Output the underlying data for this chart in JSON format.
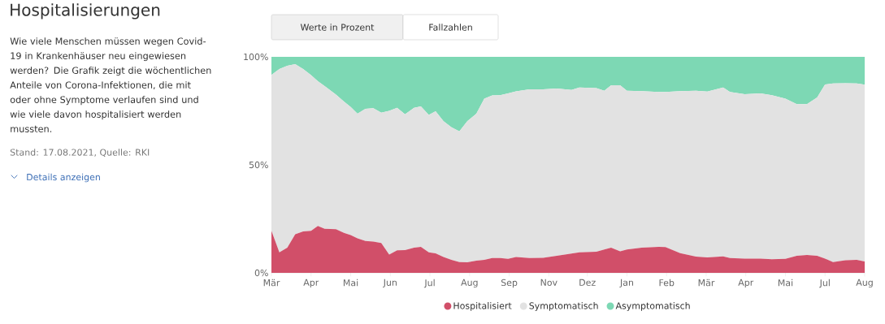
{
  "chart_data": {
    "type": "area",
    "title": "Hospitalisierungen",
    "subtitle": "Wie viele Menschen müssen wegen Covid-19 in Krankenhäuser neu eingewiesen werden? Die Grafik zeigt die wöchentlichen Anteile von Corona-Infektionen, die mit oder ohne Symptome verlaufen sind und wie viele davon hospitalisiert werden mussten.",
    "annotations": [
      "Stand: 17.08.2021, Quelle: RKI",
      "Details anzeigen",
      "Werte in Prozent",
      "Fallzahlen"
    ],
    "stacked": true,
    "legend": "bottom",
    "xlim": [
      "2020-03-02",
      "2021-08-08"
    ],
    "xticks": [
      {
        "value": "2020-03-02",
        "label": "Mär"
      },
      {
        "value": "2020-04-06",
        "label": "Apr"
      },
      {
        "value": "2020-05-11",
        "label": "Mai"
      },
      {
        "value": "2020-06-15",
        "label": "Jun"
      },
      {
        "value": "2020-07-20",
        "label": "Jul"
      },
      {
        "value": "2020-08-24",
        "label": "Aug"
      },
      {
        "value": "2020-09-28",
        "label": "Sep"
      },
      {
        "value": "2020-11-02",
        "label": "Nov"
      },
      {
        "value": "2020-12-06",
        "label": "Dez"
      },
      {
        "value": "2021-01-10",
        "label": "Jan"
      },
      {
        "value": "2021-02-14",
        "label": "Feb"
      },
      {
        "value": "2021-03-21",
        "label": "Mär"
      },
      {
        "value": "2021-04-25",
        "label": "Apr"
      },
      {
        "value": "2021-05-30",
        "label": "Mai"
      },
      {
        "value": "2021-07-04",
        "label": "Jul"
      },
      {
        "value": "2021-08-08",
        "label": "Aug"
      }
    ],
    "ylim": [
      0,
      100
    ],
    "yticks": [
      {
        "value": 0,
        "label": "0%"
      },
      {
        "value": 50,
        "label": "50%"
      },
      {
        "value": 100,
        "label": "100%"
      }
    ],
    "x": [
      "2020-03-02",
      "2020-03-09",
      "2020-03-16",
      "2020-03-23",
      "2020-03-30",
      "2020-04-06",
      "2020-04-12",
      "2020-04-18",
      "2020-04-28",
      "2020-05-05",
      "2020-05-11",
      "2020-05-17",
      "2020-05-24",
      "2020-05-31",
      "2020-06-07",
      "2020-06-14",
      "2020-06-21",
      "2020-06-28",
      "2020-07-06",
      "2020-07-12",
      "2020-07-19",
      "2020-07-25",
      "2020-08-01",
      "2020-08-08",
      "2020-08-15",
      "2020-08-22",
      "2020-08-30",
      "2020-09-06",
      "2020-09-13",
      "2020-09-20",
      "2020-09-27",
      "2020-10-04",
      "2020-10-16",
      "2020-10-28",
      "2020-11-09",
      "2020-11-22",
      "2020-11-29",
      "2020-12-14",
      "2020-12-21",
      "2020-12-27",
      "2021-01-04",
      "2021-01-10",
      "2021-01-23",
      "2021-02-07",
      "2021-02-13",
      "2021-02-26",
      "2021-03-12",
      "2021-03-22",
      "2021-04-05",
      "2021-04-11",
      "2021-04-24",
      "2021-05-08",
      "2021-05-18",
      "2021-05-30",
      "2021-06-09",
      "2021-06-18",
      "2021-06-27",
      "2021-07-04",
      "2021-07-11",
      "2021-07-22",
      "2021-08-01",
      "2021-08-08"
    ],
    "series": [
      {
        "name": "Hospitalisiert",
        "color": "#d14f69",
        "values": [
          19.5,
          9.5,
          11.7,
          17.9,
          19.2,
          19.5,
          21.7,
          20.4,
          20.2,
          18.5,
          17.5,
          16.0,
          14.8,
          14.5,
          13.8,
          8.5,
          10.4,
          10.5,
          11.7,
          12.0,
          9.5,
          9.0,
          7.3,
          6.0,
          5.0,
          4.9,
          5.6,
          6.0,
          6.9,
          6.9,
          6.5,
          7.3,
          6.9,
          7.0,
          7.9,
          8.9,
          9.5,
          9.8,
          10.8,
          11.7,
          10.0,
          10.8,
          11.7,
          12.0,
          11.9,
          9.1,
          7.5,
          7.1,
          7.6,
          6.9,
          6.6,
          6.6,
          6.3,
          6.5,
          7.9,
          8.3,
          7.9,
          6.6,
          5.0,
          5.8,
          6.0,
          5.3
        ]
      },
      {
        "name": "Symptomatisch",
        "color": "#e2e2e2",
        "values": [
          72.1,
          84.9,
          84.2,
          78.7,
          75.2,
          72.0,
          67.0,
          66.1,
          62.3,
          60.8,
          59.3,
          57.7,
          61.1,
          61.7,
          60.4,
          66.5,
          66.0,
          62.9,
          64.7,
          65.1,
          63.6,
          65.8,
          62.9,
          61.4,
          60.5,
          65.3,
          68.1,
          74.6,
          75.2,
          75.3,
          76.6,
          76.7,
          78.1,
          78.0,
          77.4,
          75.8,
          76.3,
          75.7,
          73.5,
          75.1,
          76.8,
          73.5,
          72.4,
          71.7,
          71.8,
          75.0,
          76.8,
          76.8,
          78.2,
          76.8,
          76.1,
          76.5,
          75.9,
          74.1,
          70.2,
          69.8,
          73.3,
          80.6,
          82.7,
          82.0,
          81.7,
          81.8
        ]
      },
      {
        "name": "Asymptomatisch",
        "color": "#7dd8b4",
        "values": [
          8.4,
          5.6,
          4.1,
          3.4,
          5.6,
          8.5,
          11.3,
          13.5,
          17.5,
          20.7,
          23.2,
          26.3,
          24.1,
          23.8,
          25.8,
          25.0,
          23.6,
          26.6,
          23.6,
          22.9,
          26.9,
          25.2,
          29.8,
          32.6,
          34.5,
          29.8,
          26.3,
          19.4,
          17.9,
          17.8,
          16.9,
          16.0,
          15.0,
          15.0,
          14.7,
          15.3,
          14.2,
          14.5,
          15.7,
          13.2,
          13.2,
          15.7,
          15.9,
          16.3,
          16.3,
          15.9,
          15.7,
          16.1,
          14.2,
          16.3,
          17.3,
          16.9,
          17.8,
          19.4,
          21.9,
          21.9,
          18.8,
          12.8,
          12.3,
          12.2,
          12.3,
          12.9
        ]
      }
    ]
  }
}
